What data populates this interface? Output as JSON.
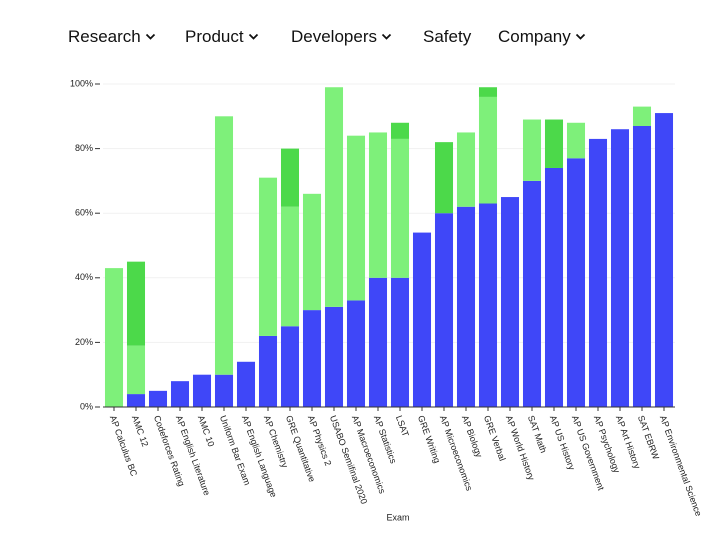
{
  "nav": {
    "items": [
      "Research",
      "Product",
      "Developers",
      "Safety",
      "Company"
    ]
  },
  "chart_data": {
    "type": "bar",
    "x_label": "Exam",
    "categories": [
      "AP Calculus BC",
      "AMC 12",
      "Codeforces Rating",
      "AP English Literature",
      "AMC 10",
      "Uniform Bar Exam",
      "AP English Language",
      "AP Chemistry",
      "GRE Quantitative",
      "AP Physics 2",
      "USABO Semifinal 2020",
      "AP Macroeconomics",
      "AP Statistics",
      "LSAT",
      "GRE Writing",
      "AP Microeconomics",
      "AP Biology",
      "GRE Verbal",
      "AP World History",
      "SAT Math",
      "AP US History",
      "AP US Government",
      "AP Psychology",
      "AP Art History",
      "SAT EBRW",
      "AP Environmental Science"
    ],
    "series": [
      {
        "color": "#3f47f8",
        "values": [
          0,
          4,
          5,
          8,
          10,
          10,
          14,
          22,
          25,
          30,
          31,
          33,
          40,
          40,
          54,
          60,
          62,
          63,
          65,
          70,
          74,
          77,
          83,
          86,
          87,
          91
        ]
      },
      {
        "color": "#7ef07a",
        "values": [
          43,
          15,
          0,
          0,
          0,
          80,
          0,
          49,
          37,
          36,
          68,
          51,
          45,
          43,
          0,
          0,
          23,
          33,
          0,
          19,
          0,
          11,
          0,
          0,
          6,
          0
        ]
      },
      {
        "color": "#4cd94a",
        "values": [
          0,
          26,
          0,
          0,
          0,
          0,
          0,
          0,
          18,
          0,
          0,
          0,
          0,
          5,
          0,
          22,
          0,
          3,
          0,
          0,
          15,
          0,
          0,
          0,
          0,
          0
        ]
      }
    ],
    "ylim": [
      0,
      100
    ],
    "yticks": [
      {
        "value": 0,
        "label": "0%"
      },
      {
        "value": 20,
        "label": "20%"
      },
      {
        "value": 40,
        "label": "40%"
      },
      {
        "value": 60,
        "label": "60%"
      },
      {
        "value": 80,
        "label": "80%"
      },
      {
        "value": 100,
        "label": "100%"
      }
    ],
    "grid": true
  }
}
